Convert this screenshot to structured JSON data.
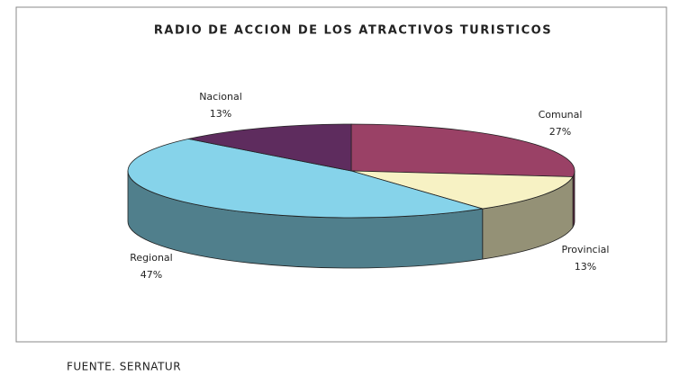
{
  "chart_data": {
    "type": "pie3d",
    "title": "RADIO DE ACCION DE LOS ATRACTIVOS TURISTICOS",
    "categories": [
      "Comunal",
      "Provincial",
      "Regional",
      "Nacional"
    ],
    "values": [
      27,
      13,
      47,
      13
    ],
    "value_labels": [
      "27%",
      "13%",
      "47%",
      "13%"
    ],
    "colors": [
      "#9a4166",
      "#f7f2c4",
      "#86d3ea",
      "#5e2c5e"
    ],
    "note": "FUENTE. SERNATUR"
  }
}
